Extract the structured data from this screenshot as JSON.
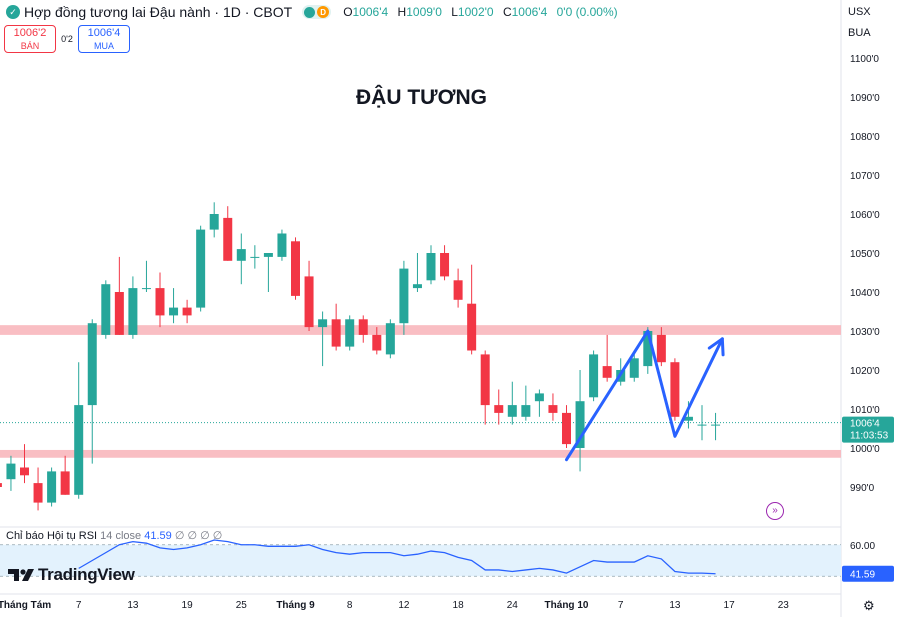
{
  "header": {
    "symbol": "Hợp đồng tương lai Đậu nành · 1D · CBOT",
    "d_badge": "D",
    "ohlc": {
      "o_label": "O",
      "o": "1006'4",
      "h_label": "H",
      "h": "1009'0",
      "l_label": "L",
      "l": "1002'0",
      "c_label": "C",
      "c": "1006'4",
      "change": "0'0 (0.00%)"
    }
  },
  "trade": {
    "sell_price": "1006'2",
    "sell_label": "BÁN",
    "spread": "0'2",
    "buy_price": "1006'4",
    "buy_label": "MUA"
  },
  "currency_button": "USX",
  "unit_button": "BUA",
  "annotation_title": "ĐẬU TƯƠNG",
  "rsi_legend": {
    "name": "Chỉ báo Hội tụ RSI",
    "params": "14 close",
    "value": "41.59",
    "extra": "∅ ∅ ∅ ∅"
  },
  "logo_text": "TradingView",
  "icons": {
    "settings": "gear-icon",
    "goto_realtime": "double-chevron-right-icon",
    "status": "market-open-dot-icon"
  },
  "colors": {
    "up": "#26a69a",
    "down": "#f23645",
    "zone": "#f8b3b8",
    "trendline": "#2962ff",
    "rsi": "#2962ff",
    "rsi_band": "#e3f2fd"
  },
  "chart_data": {
    "type": "candlestick",
    "title": "ĐẬU TƯƠNG",
    "y_unit_note": "price in cents/bushel, quoted in 1/8 format",
    "ylim": [
      984,
      1112
    ],
    "y_ticks": [
      {
        "value": 1100,
        "label": "1100'0"
      },
      {
        "value": 1090,
        "label": "1090'0"
      },
      {
        "value": 1080,
        "label": "1080'0"
      },
      {
        "value": 1070,
        "label": "1070'0"
      },
      {
        "value": 1060,
        "label": "1060'0"
      },
      {
        "value": 1050,
        "label": "1050'0"
      },
      {
        "value": 1040,
        "label": "1040'0"
      },
      {
        "value": 1030,
        "label": "1030'0"
      },
      {
        "value": 1020,
        "label": "1020'0"
      },
      {
        "value": 1010,
        "label": "1010'0"
      },
      {
        "value": 1000,
        "label": "1000'0"
      },
      {
        "value": 990,
        "label": "990'0"
      }
    ],
    "x_ticks": [
      {
        "index": 0,
        "label": "Tháng Tám"
      },
      {
        "index": 4,
        "label": "7"
      },
      {
        "index": 8,
        "label": "13"
      },
      {
        "index": 12,
        "label": "19"
      },
      {
        "index": 16,
        "label": "25"
      },
      {
        "index": 20,
        "label": "Tháng 9"
      },
      {
        "index": 24,
        "label": "8"
      },
      {
        "index": 28,
        "label": "12"
      },
      {
        "index": 32,
        "label": "18"
      },
      {
        "index": 36,
        "label": "24"
      },
      {
        "index": 40,
        "label": "Tháng 10"
      },
      {
        "index": 44,
        "label": "7"
      },
      {
        "index": 48,
        "label": "13"
      },
      {
        "index": 52,
        "label": "17"
      },
      {
        "index": 56,
        "label": "23"
      }
    ],
    "candles": [
      {
        "i": -4,
        "o": 1008,
        "h": 1010,
        "l": 998,
        "c": 999
      },
      {
        "i": -3,
        "o": 998,
        "h": 999,
        "l": 989,
        "c": 991
      },
      {
        "i": -2,
        "o": 991,
        "h": 993,
        "l": 988,
        "c": 990
      },
      {
        "i": -1,
        "o": 992,
        "h": 998,
        "l": 989,
        "c": 996
      },
      {
        "i": 0,
        "o": 995,
        "h": 1001,
        "l": 991,
        "c": 993
      },
      {
        "i": 1,
        "o": 991,
        "h": 995,
        "l": 984,
        "c": 986
      },
      {
        "i": 2,
        "o": 986,
        "h": 995,
        "l": 985,
        "c": 994
      },
      {
        "i": 3,
        "o": 994,
        "h": 998,
        "l": 988,
        "c": 988
      },
      {
        "i": 4,
        "o": 988,
        "h": 1022,
        "l": 987,
        "c": 1011
      },
      {
        "i": 5,
        "o": 1011,
        "h": 1033,
        "l": 996,
        "c": 1032
      },
      {
        "i": 6,
        "o": 1029,
        "h": 1043,
        "l": 1028,
        "c": 1042
      },
      {
        "i": 7,
        "o": 1040,
        "h": 1049,
        "l": 1029,
        "c": 1029
      },
      {
        "i": 8,
        "o": 1029,
        "h": 1044,
        "l": 1028,
        "c": 1041
      },
      {
        "i": 9,
        "o": 1041,
        "h": 1048,
        "l": 1040,
        "c": 1041
      },
      {
        "i": 10,
        "o": 1041,
        "h": 1045,
        "l": 1031,
        "c": 1034
      },
      {
        "i": 11,
        "o": 1034,
        "h": 1041,
        "l": 1032,
        "c": 1036
      },
      {
        "i": 12,
        "o": 1036,
        "h": 1038,
        "l": 1032,
        "c": 1034
      },
      {
        "i": 13,
        "o": 1036,
        "h": 1057,
        "l": 1035,
        "c": 1056
      },
      {
        "i": 14,
        "o": 1056,
        "h": 1063,
        "l": 1054,
        "c": 1060
      },
      {
        "i": 15,
        "o": 1059,
        "h": 1062,
        "l": 1048,
        "c": 1048
      },
      {
        "i": 16,
        "o": 1048,
        "h": 1055,
        "l": 1042,
        "c": 1051
      },
      {
        "i": 17,
        "o": 1049,
        "h": 1052,
        "l": 1046,
        "c": 1049
      },
      {
        "i": 18,
        "o": 1049,
        "h": 1050,
        "l": 1040,
        "c": 1050
      },
      {
        "i": 19,
        "o": 1049,
        "h": 1056,
        "l": 1048,
        "c": 1055
      },
      {
        "i": 20,
        "o": 1053,
        "h": 1054,
        "l": 1038,
        "c": 1039
      },
      {
        "i": 21,
        "o": 1044,
        "h": 1048,
        "l": 1030,
        "c": 1031
      },
      {
        "i": 22,
        "o": 1031,
        "h": 1035,
        "l": 1021,
        "c": 1033
      },
      {
        "i": 23,
        "o": 1033,
        "h": 1037,
        "l": 1025,
        "c": 1026
      },
      {
        "i": 24,
        "o": 1026,
        "h": 1034,
        "l": 1025,
        "c": 1033
      },
      {
        "i": 25,
        "o": 1033,
        "h": 1034,
        "l": 1027,
        "c": 1029
      },
      {
        "i": 26,
        "o": 1029,
        "h": 1031,
        "l": 1024,
        "c": 1025
      },
      {
        "i": 27,
        "o": 1024,
        "h": 1033,
        "l": 1023,
        "c": 1032
      },
      {
        "i": 28,
        "o": 1032,
        "h": 1048,
        "l": 1029,
        "c": 1046
      },
      {
        "i": 29,
        "o": 1041,
        "h": 1050,
        "l": 1040,
        "c": 1042
      },
      {
        "i": 30,
        "o": 1043,
        "h": 1052,
        "l": 1042,
        "c": 1050
      },
      {
        "i": 31,
        "o": 1050,
        "h": 1052,
        "l": 1043,
        "c": 1044
      },
      {
        "i": 32,
        "o": 1043,
        "h": 1046,
        "l": 1036,
        "c": 1038
      },
      {
        "i": 33,
        "o": 1037,
        "h": 1047,
        "l": 1024,
        "c": 1025
      },
      {
        "i": 34,
        "o": 1024,
        "h": 1025,
        "l": 1006,
        "c": 1011
      },
      {
        "i": 35,
        "o": 1011,
        "h": 1015,
        "l": 1006,
        "c": 1009
      },
      {
        "i": 36,
        "o": 1008,
        "h": 1017,
        "l": 1006,
        "c": 1011
      },
      {
        "i": 37,
        "o": 1008,
        "h": 1016,
        "l": 1007,
        "c": 1011
      },
      {
        "i": 38,
        "o": 1012,
        "h": 1015,
        "l": 1008,
        "c": 1014
      },
      {
        "i": 39,
        "o": 1011,
        "h": 1014,
        "l": 1007,
        "c": 1009
      },
      {
        "i": 40,
        "o": 1009,
        "h": 1011,
        "l": 1000,
        "c": 1001
      },
      {
        "i": 41,
        "o": 1000,
        "h": 1020,
        "l": 994,
        "c": 1012
      },
      {
        "i": 42,
        "o": 1013,
        "h": 1025,
        "l": 1012,
        "c": 1024
      },
      {
        "i": 43,
        "o": 1021,
        "h": 1029,
        "l": 1017,
        "c": 1018
      },
      {
        "i": 44,
        "o": 1017,
        "h": 1023,
        "l": 1016,
        "c": 1020
      },
      {
        "i": 45,
        "o": 1018,
        "h": 1025,
        "l": 1017,
        "c": 1023
      },
      {
        "i": 46,
        "o": 1021,
        "h": 1031,
        "l": 1019,
        "c": 1030
      },
      {
        "i": 47,
        "o": 1029,
        "h": 1031,
        "l": 1021,
        "c": 1022
      },
      {
        "i": 48,
        "o": 1022,
        "h": 1023,
        "l": 1007,
        "c": 1008
      },
      {
        "i": 49,
        "o": 1007,
        "h": 1012,
        "l": 1005,
        "c": 1008
      },
      {
        "i": 50,
        "o": 1006,
        "h": 1011,
        "l": 1002,
        "c": 1006
      },
      {
        "i": 51,
        "o": 1006,
        "h": 1009,
        "l": 1002,
        "c": 1006
      }
    ],
    "zones": [
      {
        "from": 1029,
        "to": 1031.5,
        "label": "resistance"
      },
      {
        "from": 997.5,
        "to": 999.5,
        "label": "support"
      }
    ],
    "trendlines": [
      {
        "points": [
          [
            40,
            997
          ],
          [
            46,
            1030
          ],
          [
            48,
            1003
          ],
          [
            51.5,
            1028
          ]
        ],
        "arrow": "end"
      }
    ],
    "last_price": {
      "value": 1006.5,
      "label": "1006'4",
      "countdown": "11:03:53"
    },
    "rsi": {
      "ylim": [
        30,
        70
      ],
      "tick_labels": [
        {
          "value": 60,
          "label": "60.00"
        }
      ],
      "band": [
        40,
        60
      ],
      "last_value": 41.59,
      "last_label": "41.59",
      "values": [
        {
          "i": 4,
          "v": 45
        },
        {
          "i": 5,
          "v": 50
        },
        {
          "i": 6,
          "v": 55
        },
        {
          "i": 7,
          "v": 60
        },
        {
          "i": 8,
          "v": 62
        },
        {
          "i": 9,
          "v": 61
        },
        {
          "i": 10,
          "v": 58
        },
        {
          "i": 11,
          "v": 57
        },
        {
          "i": 12,
          "v": 58
        },
        {
          "i": 13,
          "v": 60
        },
        {
          "i": 14,
          "v": 63
        },
        {
          "i": 15,
          "v": 62
        },
        {
          "i": 16,
          "v": 60
        },
        {
          "i": 17,
          "v": 60
        },
        {
          "i": 18,
          "v": 59
        },
        {
          "i": 19,
          "v": 59
        },
        {
          "i": 20,
          "v": 59
        },
        {
          "i": 21,
          "v": 60
        },
        {
          "i": 22,
          "v": 57
        },
        {
          "i": 23,
          "v": 55
        },
        {
          "i": 24,
          "v": 54
        },
        {
          "i": 25,
          "v": 55
        },
        {
          "i": 26,
          "v": 55
        },
        {
          "i": 27,
          "v": 55
        },
        {
          "i": 28,
          "v": 53
        },
        {
          "i": 29,
          "v": 54
        },
        {
          "i": 30,
          "v": 56
        },
        {
          "i": 31,
          "v": 55
        },
        {
          "i": 32,
          "v": 52
        },
        {
          "i": 33,
          "v": 50
        },
        {
          "i": 34,
          "v": 44
        },
        {
          "i": 35,
          "v": 44
        },
        {
          "i": 36,
          "v": 43
        },
        {
          "i": 37,
          "v": 44
        },
        {
          "i": 38,
          "v": 45
        },
        {
          "i": 39,
          "v": 44
        },
        {
          "i": 40,
          "v": 42
        },
        {
          "i": 41,
          "v": 46
        },
        {
          "i": 42,
          "v": 50
        },
        {
          "i": 43,
          "v": 49
        },
        {
          "i": 44,
          "v": 49
        },
        {
          "i": 45,
          "v": 49
        },
        {
          "i": 46,
          "v": 53
        },
        {
          "i": 47,
          "v": 51
        },
        {
          "i": 48,
          "v": 43
        },
        {
          "i": 49,
          "v": 42
        },
        {
          "i": 50,
          "v": 42
        },
        {
          "i": 51,
          "v": 41.59
        }
      ]
    }
  }
}
